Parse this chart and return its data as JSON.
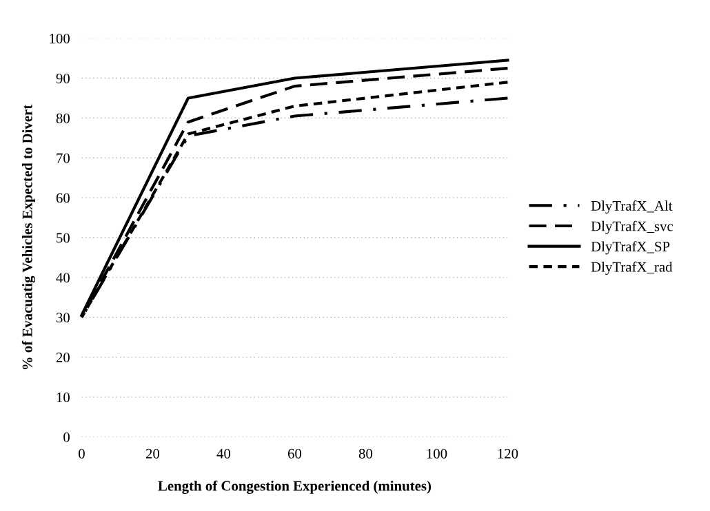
{
  "chart_data": {
    "type": "line",
    "xlabel": "Length of Congestion Experienced (minutes)",
    "ylabel": "% of Evacuatig Vehicles Expected to Divert",
    "x": [
      0,
      30,
      60,
      120
    ],
    "series": [
      {
        "name": "DlyTrafX_Alt",
        "color": "#000000",
        "line_style": "dashdot",
        "values": [
          30,
          75.5,
          80.5,
          85
        ]
      },
      {
        "name": "DlyTrafX_svc",
        "color": "#000000",
        "line_style": "dashed",
        "values": [
          30,
          79,
          88,
          92.5
        ]
      },
      {
        "name": "DlyTrafX_SP",
        "color": "#000000",
        "line_style": "solid",
        "values": [
          30.5,
          85,
          90,
          94.5
        ]
      },
      {
        "name": "DlyTrafX_rad",
        "color": "#000000",
        "line_style": "dotted",
        "values": [
          30,
          76,
          83,
          89
        ]
      }
    ],
    "xlim": [
      0,
      120
    ],
    "xticks": [
      0,
      20,
      40,
      60,
      80,
      100,
      120
    ],
    "ylim": [
      0,
      100
    ],
    "yticks": [
      0,
      10,
      20,
      30,
      40,
      50,
      60,
      70,
      80,
      90,
      100
    ],
    "grid": "y",
    "legend": "right",
    "marker": "none"
  }
}
